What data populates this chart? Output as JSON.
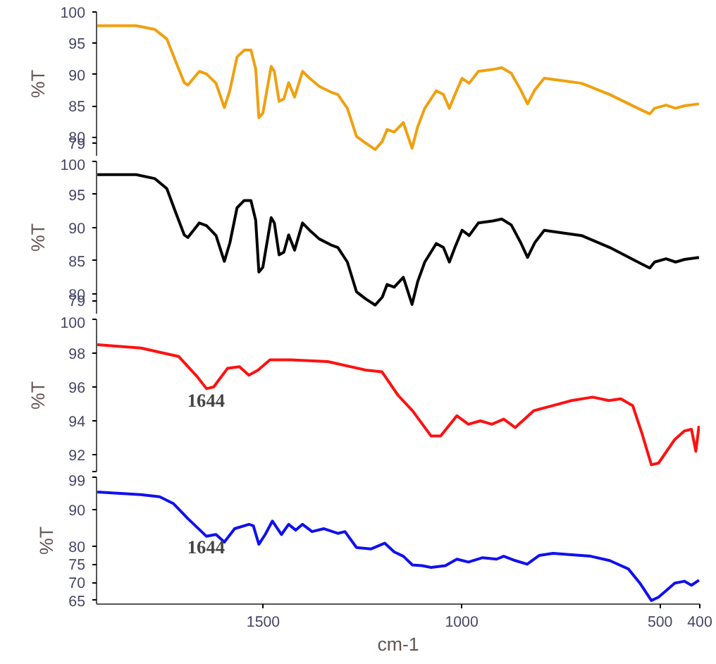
{
  "chart_data": [
    {
      "type": "line",
      "ylabel": "%T",
      "xlim": [
        1920,
        400
      ],
      "ylim": [
        77,
        100
      ],
      "yticks": [
        79,
        80,
        85,
        90,
        95,
        100
      ],
      "tick_labels": "y",
      "series": [
        {
          "color": "#f0a010",
          "x": [
            1918,
            1820,
            1773,
            1743,
            1720,
            1699,
            1690,
            1661,
            1643,
            1619,
            1598,
            1584,
            1566,
            1548,
            1531,
            1519,
            1511,
            1501,
            1480,
            1472,
            1460,
            1448,
            1436,
            1421,
            1401,
            1383,
            1359,
            1330,
            1312,
            1288,
            1265,
            1241,
            1218,
            1200,
            1188,
            1170,
            1147,
            1125,
            1111,
            1093,
            1064,
            1046,
            1031,
            1017,
            999,
            981,
            958,
            922,
            899,
            875,
            851,
            834,
            816,
            792,
            745,
            698,
            627,
            556,
            526,
            514,
            485,
            461,
            438,
            402
          ],
          "values": [
            97.8,
            97.8,
            97.2,
            95.7,
            92.0,
            88.7,
            88.3,
            90.5,
            90.1,
            88.6,
            84.7,
            87.5,
            92.8,
            93.9,
            93.9,
            90.9,
            83.1,
            83.8,
            91.3,
            90.5,
            85.7,
            86.1,
            88.7,
            86.4,
            90.5,
            89.4,
            88.1,
            87.2,
            86.8,
            84.6,
            80.1,
            79.0,
            78.0,
            79.3,
            81.2,
            80.8,
            82.3,
            78.2,
            81.6,
            84.6,
            87.4,
            86.8,
            84.6,
            86.8,
            89.4,
            88.6,
            90.5,
            90.8,
            91.1,
            90.2,
            87.5,
            85.3,
            87.5,
            89.4,
            89.0,
            88.6,
            86.8,
            84.6,
            83.7,
            84.6,
            85.1,
            84.6,
            85.0,
            85.3
          ]
        }
      ]
    },
    {
      "type": "line",
      "ylabel": "%T",
      "xlim": [
        1920,
        400
      ],
      "ylim": [
        77,
        100
      ],
      "yticks": [
        79,
        80,
        85,
        90,
        95,
        100
      ],
      "tick_labels": "y",
      "series": [
        {
          "color": "#000000",
          "x": [
            1918,
            1820,
            1773,
            1743,
            1720,
            1699,
            1690,
            1661,
            1643,
            1619,
            1598,
            1584,
            1566,
            1548,
            1531,
            1519,
            1511,
            1501,
            1480,
            1472,
            1460,
            1448,
            1436,
            1421,
            1401,
            1383,
            1359,
            1330,
            1312,
            1288,
            1265,
            1241,
            1218,
            1200,
            1188,
            1170,
            1147,
            1125,
            1111,
            1093,
            1064,
            1046,
            1031,
            1017,
            999,
            981,
            958,
            922,
            899,
            875,
            851,
            834,
            816,
            792,
            745,
            698,
            627,
            556,
            526,
            514,
            485,
            461,
            438,
            402
          ],
          "values": [
            98.0,
            98.0,
            97.4,
            95.9,
            92.2,
            88.9,
            88.5,
            90.7,
            90.3,
            88.8,
            84.9,
            87.7,
            93.0,
            94.1,
            94.1,
            91.1,
            83.3,
            84.0,
            91.5,
            90.7,
            85.9,
            86.3,
            88.9,
            86.6,
            90.7,
            89.6,
            88.3,
            87.4,
            87.0,
            84.8,
            80.3,
            79.2,
            78.3,
            79.5,
            81.4,
            81.0,
            82.5,
            78.4,
            81.8,
            84.8,
            87.6,
            87.0,
            84.8,
            87.0,
            89.6,
            88.8,
            90.7,
            91.0,
            91.3,
            90.4,
            87.7,
            85.5,
            87.7,
            89.6,
            89.2,
            88.8,
            87.0,
            84.8,
            83.9,
            84.8,
            85.3,
            84.8,
            85.2,
            85.5
          ]
        }
      ]
    },
    {
      "type": "line",
      "ylabel": "%T",
      "xlim": [
        1920,
        400
      ],
      "ylim": [
        91,
        100
      ],
      "yticks": [
        {
          "value": 91,
          "label": null
        },
        92,
        94,
        96,
        98,
        100
      ],
      "tick_labels": "y",
      "annotations": [
        {
          "text": "1644",
          "x": 1644,
          "y": 95.6
        }
      ],
      "series": [
        {
          "color": "#ff1010",
          "x": [
            1918,
            1808,
            1713,
            1666,
            1643,
            1625,
            1590,
            1560,
            1536,
            1513,
            1483,
            1430,
            1337,
            1242,
            1201,
            1160,
            1124,
            1077,
            1053,
            1012,
            983,
            953,
            924,
            894,
            865,
            818,
            770,
            723,
            670,
            629,
            599,
            569,
            545,
            522,
            504,
            463,
            439,
            421,
            410,
            402
          ],
          "values": [
            98.5,
            98.3,
            97.8,
            96.6,
            95.9,
            96.0,
            97.1,
            97.2,
            96.7,
            97.0,
            97.6,
            97.6,
            97.5,
            97.0,
            96.9,
            95.5,
            94.6,
            93.1,
            93.1,
            94.3,
            93.8,
            94.0,
            93.8,
            94.1,
            93.6,
            94.6,
            94.9,
            95.2,
            95.4,
            95.2,
            95.3,
            94.9,
            93.2,
            91.4,
            91.5,
            92.9,
            93.4,
            93.5,
            92.2,
            93.7
          ]
        }
      ]
    },
    {
      "type": "line",
      "ylabel": "%T",
      "xlabel": "cm-1",
      "xlim": [
        1920,
        400
      ],
      "xticks": [
        1500,
        1000,
        500,
        400
      ],
      "ylim": [
        64,
        99
      ],
      "yticks": [
        65,
        70,
        75,
        80,
        90,
        99
      ],
      "annotations": [
        {
          "text": "1644",
          "x": 1644,
          "y": 81.5
        }
      ],
      "series": [
        {
          "color": "#1010f0",
          "x": [
            1918,
            1808,
            1761,
            1726,
            1690,
            1643,
            1619,
            1598,
            1572,
            1536,
            1525,
            1511,
            1495,
            1477,
            1454,
            1436,
            1418,
            1401,
            1377,
            1347,
            1312,
            1294,
            1265,
            1229,
            1194,
            1170,
            1147,
            1124,
            1100,
            1077,
            1041,
            1012,
            983,
            947,
            912,
            894,
            865,
            835,
            805,
            770,
            723,
            675,
            627,
            580,
            551,
            522,
            504,
            486,
            463,
            439,
            421,
            402
          ],
          "values": [
            94.9,
            94.2,
            93.6,
            91.7,
            87.6,
            82.7,
            83.2,
            81.1,
            84.8,
            86.0,
            85.6,
            80.5,
            83.2,
            86.9,
            83.2,
            86.0,
            84.4,
            86.0,
            84.0,
            84.8,
            83.5,
            84.0,
            79.6,
            79.2,
            80.8,
            78.4,
            77.2,
            74.8,
            74.6,
            74.1,
            74.6,
            76.4,
            75.6,
            76.8,
            76.4,
            77.2,
            76.0,
            75.0,
            77.4,
            78.0,
            77.6,
            77.2,
            76.0,
            73.7,
            69.8,
            65.0,
            65.9,
            67.6,
            69.8,
            70.3,
            69.2,
            70.6
          ]
        }
      ]
    }
  ]
}
